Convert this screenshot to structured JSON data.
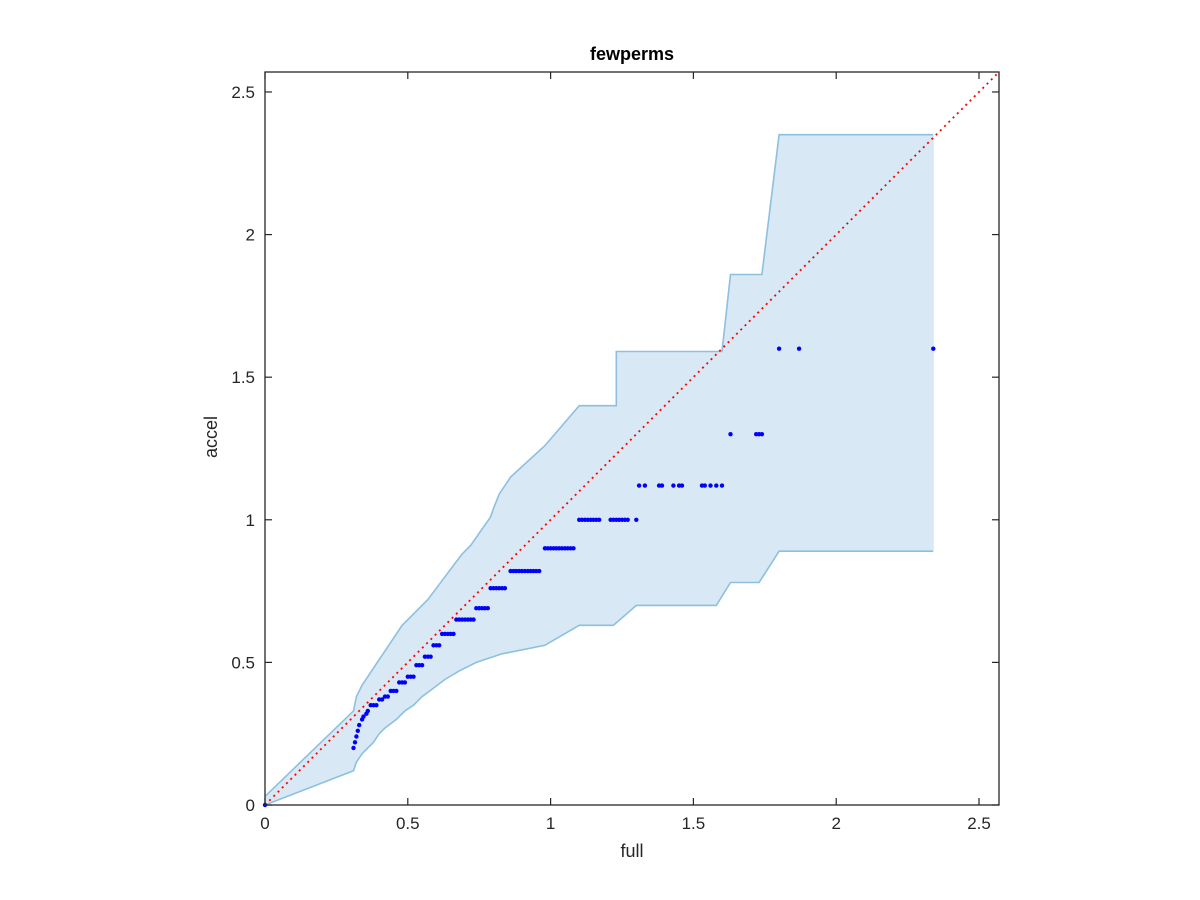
{
  "chart_data": {
    "type": "scatter",
    "title": "fewperms",
    "xlabel": "full",
    "ylabel": "accel",
    "xlim": [
      0,
      2.57
    ],
    "ylim": [
      0,
      2.57
    ],
    "xticks": [
      0,
      0.5,
      1,
      1.5,
      2,
      2.5
    ],
    "xtick_labels": [
      "0",
      "0.5",
      "1",
      "1.5",
      "2",
      "2.5"
    ],
    "yticks": [
      0,
      0.5,
      1,
      1.5,
      2,
      2.5
    ],
    "ytick_labels": [
      "0",
      "0.5",
      "1",
      "1.5",
      "2",
      "2.5"
    ],
    "grid": false,
    "colors": {
      "band_fill": "#d8e8f4",
      "band_edge": "#8dc0e0",
      "points": "#0000ff",
      "diagonal": "#ff0000",
      "axes": "#262626"
    },
    "band": {
      "upper": [
        [
          0,
          0.03
        ],
        [
          0.31,
          0.33
        ],
        [
          0.31,
          0.33
        ],
        [
          0.32,
          0.38
        ],
        [
          0.34,
          0.42
        ],
        [
          0.36,
          0.45
        ],
        [
          0.38,
          0.48
        ],
        [
          0.4,
          0.51
        ],
        [
          0.42,
          0.54
        ],
        [
          0.44,
          0.57
        ],
        [
          0.46,
          0.6
        ],
        [
          0.48,
          0.63
        ],
        [
          0.51,
          0.66
        ],
        [
          0.54,
          0.69
        ],
        [
          0.57,
          0.72
        ],
        [
          0.6,
          0.76
        ],
        [
          0.63,
          0.8
        ],
        [
          0.66,
          0.84
        ],
        [
          0.69,
          0.88
        ],
        [
          0.72,
          0.91
        ],
        [
          0.79,
          1.01
        ],
        [
          0.8,
          1.04
        ],
        [
          0.82,
          1.09
        ],
        [
          0.86,
          1.15
        ],
        [
          0.98,
          1.26
        ],
        [
          1.1,
          1.4
        ],
        [
          1.23,
          1.4
        ],
        [
          1.23,
          1.59
        ],
        [
          1.6,
          1.59
        ],
        [
          1.63,
          1.86
        ],
        [
          1.74,
          1.86
        ],
        [
          1.8,
          2.35
        ],
        [
          2.34,
          2.35
        ]
      ],
      "lower": [
        [
          0,
          0
        ],
        [
          0.31,
          0.12
        ],
        [
          0.32,
          0.15
        ],
        [
          0.34,
          0.18
        ],
        [
          0.36,
          0.2
        ],
        [
          0.38,
          0.22
        ],
        [
          0.4,
          0.25
        ],
        [
          0.42,
          0.27
        ],
        [
          0.46,
          0.3
        ],
        [
          0.49,
          0.33
        ],
        [
          0.52,
          0.35
        ],
        [
          0.55,
          0.38
        ],
        [
          0.59,
          0.41
        ],
        [
          0.63,
          0.44
        ],
        [
          0.68,
          0.47
        ],
        [
          0.74,
          0.5
        ],
        [
          0.83,
          0.53
        ],
        [
          0.98,
          0.56
        ],
        [
          1.1,
          0.63
        ],
        [
          1.22,
          0.63
        ],
        [
          1.3,
          0.7
        ],
        [
          1.58,
          0.7
        ],
        [
          1.63,
          0.78
        ],
        [
          1.73,
          0.78
        ],
        [
          1.8,
          0.89
        ],
        [
          2.34,
          0.89
        ]
      ]
    },
    "diagonal": {
      "from": [
        0,
        0
      ],
      "to": [
        2.57,
        2.57
      ],
      "style": "dotted"
    },
    "series": [
      {
        "points": [
          [
            0,
            0
          ],
          [
            0.31,
            0.2
          ],
          [
            0.315,
            0.22
          ],
          [
            0.32,
            0.24
          ],
          [
            0.325,
            0.26
          ],
          [
            0.33,
            0.28
          ],
          [
            0.34,
            0.3
          ],
          [
            0.345,
            0.31
          ],
          [
            0.355,
            0.32
          ],
          [
            0.36,
            0.33
          ],
          [
            0.37,
            0.35
          ],
          [
            0.38,
            0.35
          ],
          [
            0.39,
            0.35
          ],
          [
            0.4,
            0.37
          ],
          [
            0.41,
            0.37
          ],
          [
            0.42,
            0.38
          ],
          [
            0.43,
            0.38
          ],
          [
            0.44,
            0.4
          ],
          [
            0.45,
            0.4
          ],
          [
            0.46,
            0.4
          ],
          [
            0.47,
            0.43
          ],
          [
            0.48,
            0.43
          ],
          [
            0.49,
            0.43
          ],
          [
            0.5,
            0.45
          ],
          [
            0.51,
            0.45
          ],
          [
            0.52,
            0.45
          ],
          [
            0.53,
            0.49
          ],
          [
            0.54,
            0.49
          ],
          [
            0.55,
            0.49
          ],
          [
            0.56,
            0.52
          ],
          [
            0.57,
            0.52
          ],
          [
            0.58,
            0.52
          ],
          [
            0.59,
            0.56
          ],
          [
            0.6,
            0.56
          ],
          [
            0.61,
            0.56
          ],
          [
            0.62,
            0.6
          ],
          [
            0.63,
            0.6
          ],
          [
            0.64,
            0.6
          ],
          [
            0.65,
            0.6
          ],
          [
            0.66,
            0.6
          ],
          [
            0.67,
            0.65
          ],
          [
            0.68,
            0.65
          ],
          [
            0.69,
            0.65
          ],
          [
            0.7,
            0.65
          ],
          [
            0.71,
            0.65
          ],
          [
            0.72,
            0.65
          ],
          [
            0.73,
            0.65
          ],
          [
            0.74,
            0.69
          ],
          [
            0.75,
            0.69
          ],
          [
            0.76,
            0.69
          ],
          [
            0.77,
            0.69
          ],
          [
            0.78,
            0.69
          ],
          [
            0.79,
            0.76
          ],
          [
            0.8,
            0.76
          ],
          [
            0.81,
            0.76
          ],
          [
            0.82,
            0.76
          ],
          [
            0.83,
            0.76
          ],
          [
            0.84,
            0.76
          ],
          [
            0.86,
            0.82
          ],
          [
            0.87,
            0.82
          ],
          [
            0.88,
            0.82
          ],
          [
            0.89,
            0.82
          ],
          [
            0.9,
            0.82
          ],
          [
            0.91,
            0.82
          ],
          [
            0.92,
            0.82
          ],
          [
            0.93,
            0.82
          ],
          [
            0.94,
            0.82
          ],
          [
            0.95,
            0.82
          ],
          [
            0.96,
            0.82
          ],
          [
            0.98,
            0.9
          ],
          [
            0.99,
            0.9
          ],
          [
            1.0,
            0.9
          ],
          [
            1.01,
            0.9
          ],
          [
            1.02,
            0.9
          ],
          [
            1.03,
            0.9
          ],
          [
            1.04,
            0.9
          ],
          [
            1.05,
            0.9
          ],
          [
            1.06,
            0.9
          ],
          [
            1.07,
            0.9
          ],
          [
            1.08,
            0.9
          ],
          [
            1.1,
            1.0
          ],
          [
            1.11,
            1.0
          ],
          [
            1.12,
            1.0
          ],
          [
            1.13,
            1.0
          ],
          [
            1.14,
            1.0
          ],
          [
            1.15,
            1.0
          ],
          [
            1.16,
            1.0
          ],
          [
            1.17,
            1.0
          ],
          [
            1.21,
            1.0
          ],
          [
            1.22,
            1.0
          ],
          [
            1.23,
            1.0
          ],
          [
            1.24,
            1.0
          ],
          [
            1.25,
            1.0
          ],
          [
            1.26,
            1.0
          ],
          [
            1.27,
            1.0
          ],
          [
            1.3,
            1.0
          ],
          [
            1.31,
            1.12
          ],
          [
            1.33,
            1.12
          ],
          [
            1.38,
            1.12
          ],
          [
            1.39,
            1.12
          ],
          [
            1.43,
            1.12
          ],
          [
            1.45,
            1.12
          ],
          [
            1.46,
            1.12
          ],
          [
            1.53,
            1.12
          ],
          [
            1.54,
            1.12
          ],
          [
            1.56,
            1.12
          ],
          [
            1.58,
            1.12
          ],
          [
            1.6,
            1.12
          ],
          [
            1.63,
            1.3
          ],
          [
            1.72,
            1.3
          ],
          [
            1.73,
            1.3
          ],
          [
            1.74,
            1.3
          ],
          [
            1.8,
            1.6
          ],
          [
            1.87,
            1.6
          ],
          [
            2.34,
            1.6
          ]
        ]
      }
    ]
  }
}
